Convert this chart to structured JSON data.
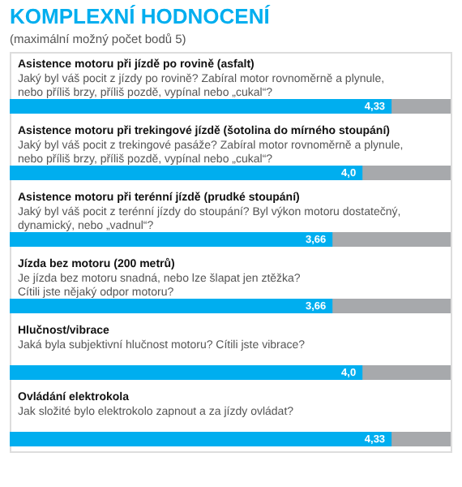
{
  "chart_data": {
    "type": "bar",
    "orientation": "horizontal",
    "title": "KOMPLEXNÍ HODNOCENÍ",
    "subtitle": "(maximální možný počet bodů 5)",
    "categories": [
      "Asistence motoru při jízdě po rovině (asfalt)",
      "Asistence motoru při trekingové jízdě (šotolina do mírného stoupání)",
      "Asistence motoru při terénní jízdě (prudké stoupání)",
      "Jízda bez motoru (200 metrů)",
      "Hlučnost/vibrace",
      "Ovládání elektrokola"
    ],
    "values": [
      4.33,
      4.0,
      3.66,
      3.66,
      4.0,
      4.33
    ],
    "value_labels": [
      "4,33",
      "4,0",
      "3,66",
      "3,66",
      "4,0",
      "4,33"
    ],
    "color": "#00aeef",
    "xlim": [
      0,
      5
    ],
    "annotations": [
      "Jaký byl váš pocit z jízdy po rovině? Zabíral motor rovnoměrně a plynule,\nnebo příliš brzy, příliš pozdě, vypínal nebo „cukal“?",
      "Jaký byl váš pocit z trekingové pasáže? Zabíral motor rovnoměrně a plynule,\nnebo příliš brzy, příliš pozdě, vypínal nebo „cukal“?",
      "Jaký byl váš pocit z terénní jízdy do stoupání? Byl výkon motoru dostatečný,\ndynamický, nebo „vadnul“?",
      "Je jízda bez motoru snadná, nebo lze šlapat jen ztěžka?\nCítili jste nějaký odpor motoru?",
      "Jaká byla subjektivní hlučnost motoru? Cítili jste vibrace?",
      "Jak složité bylo elektrokolo zapnout a za jízdy ovládat?"
    ]
  }
}
